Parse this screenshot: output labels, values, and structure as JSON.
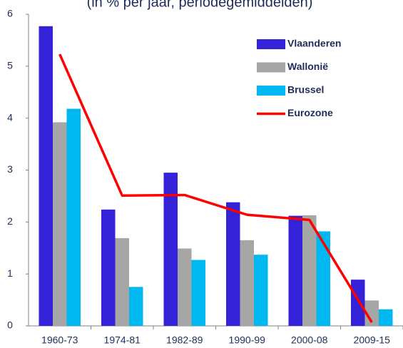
{
  "chart_data": {
    "type": "bar",
    "title": "(in % per jaar, periodegemiddelden)",
    "categories": [
      "1960-73",
      "1974-81",
      "1982-89",
      "1990-99",
      "2000-08",
      "2009-15"
    ],
    "series": [
      {
        "name": "Vlaanderen",
        "color": "#3322d8",
        "values": [
          5.77,
          2.24,
          2.95,
          2.38,
          2.12,
          0.89
        ]
      },
      {
        "name": "Wallonië",
        "color": "#a6a6a6",
        "values": [
          3.92,
          1.69,
          1.49,
          1.65,
          2.13,
          0.49
        ]
      },
      {
        "name": "Brussel",
        "color": "#00b8f0",
        "values": [
          4.18,
          0.75,
          1.27,
          1.37,
          1.82,
          0.32
        ]
      },
      {
        "name": "Eurozone",
        "color": "#ff0000",
        "type": "line",
        "values": [
          5.23,
          2.51,
          2.52,
          2.14,
          2.04,
          0.07
        ]
      }
    ],
    "ylim": [
      0,
      6
    ],
    "yticks": [
      0,
      1,
      2,
      3,
      4,
      5,
      6
    ],
    "grid": false,
    "legend": "top-right"
  }
}
